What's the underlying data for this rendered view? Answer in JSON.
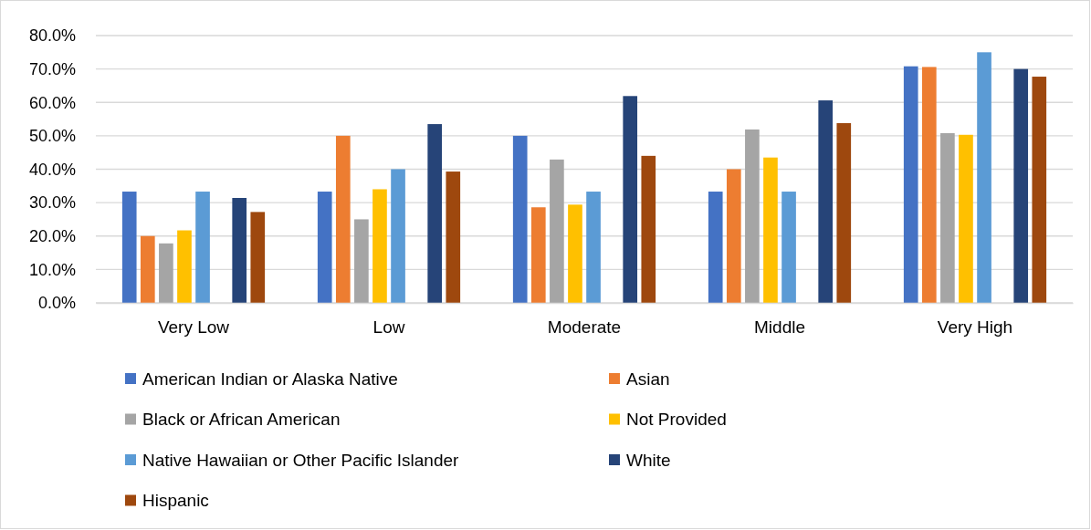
{
  "chart_data": {
    "type": "bar",
    "categories": [
      "Very Low",
      "Low",
      "Moderate",
      "Middle",
      "Very High"
    ],
    "series": [
      {
        "name": "American Indian or Alaska Native",
        "color": "#4472c4",
        "values": [
          33.3,
          33.3,
          50,
          33.3,
          70.8
        ]
      },
      {
        "name": "Asian",
        "color": "#ed7d31",
        "values": [
          20,
          50,
          28.6,
          40,
          70.6
        ]
      },
      {
        "name": "Black or African American",
        "color": "#a5a5a5",
        "values": [
          17.8,
          25,
          42.9,
          51.9,
          50.8
        ]
      },
      {
        "name": "Not Provided",
        "color": "#ffc000",
        "values": [
          21.7,
          34,
          29.4,
          43.5,
          50.3
        ]
      },
      {
        "name": "Native Hawaiian or Other Pacific Islander",
        "color": "#5b9bd5",
        "values": [
          33.3,
          40,
          33.3,
          33.3,
          75
        ]
      },
      {
        "values": [
          null,
          null,
          null,
          null,
          null
        ]
      },
      {
        "name": "White",
        "color": "#264478",
        "values": [
          31.4,
          53.5,
          61.9,
          60.6,
          70
        ]
      },
      {
        "name": "Hispanic",
        "color": "#9e480e",
        "values": [
          27.2,
          39.3,
          44,
          53.8,
          67.7
        ]
      }
    ],
    "ylim": [
      0,
      80
    ],
    "yticks": [
      {
        "value": 0,
        "label": "0.0%"
      },
      {
        "value": 10,
        "label": "10.0%"
      },
      {
        "value": 20,
        "label": "20.0%"
      },
      {
        "value": 30,
        "label": "30.0%"
      },
      {
        "value": 40,
        "label": "40.0%"
      },
      {
        "value": 50,
        "label": "50.0%"
      },
      {
        "value": 60,
        "label": "60.0%"
      },
      {
        "value": 70,
        "label": "70.0%"
      },
      {
        "value": 80,
        "label": "80.0%"
      }
    ],
    "grid": "y",
    "legend": "bottom"
  }
}
